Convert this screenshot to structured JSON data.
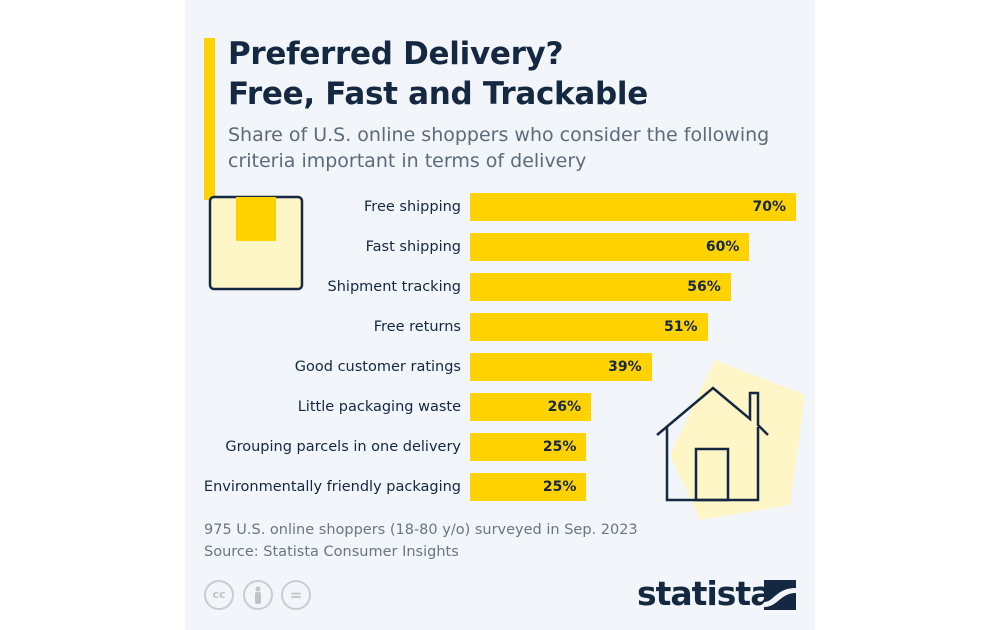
{
  "title_line1": "Preferred Delivery?",
  "title_line2": "Free, Fast and Trackable",
  "subtitle": "Share of U.S. online shoppers who consider the following criteria important in terms of delivery",
  "chart_data": {
    "type": "bar",
    "orientation": "horizontal",
    "categories": [
      "Free shipping",
      "Fast shipping",
      "Shipment tracking",
      "Free returns",
      "Good customer ratings",
      "Little packaging waste",
      "Grouping parcels in one delivery",
      "Environmentally friendly packaging"
    ],
    "values": [
      70,
      60,
      56,
      51,
      39,
      26,
      25,
      25
    ],
    "value_labels": [
      "70%",
      "60%",
      "56%",
      "51%",
      "39%",
      "26%",
      "25%",
      "25%"
    ],
    "unit": "%",
    "bar_color": "#ffd200",
    "grid": false
  },
  "note": "975 U.S. online shoppers (18-80 y/o) surveyed in Sep. 2023",
  "source": "Source: Statista Consumer Insights",
  "license_icons": [
    "cc",
    "by",
    "nd"
  ],
  "license_labels": {
    "cc": "cc",
    "nd": "="
  },
  "brand": "statista",
  "colors": {
    "background": "#f2f5f9",
    "accent": "#ffd200",
    "text": "#142841"
  }
}
